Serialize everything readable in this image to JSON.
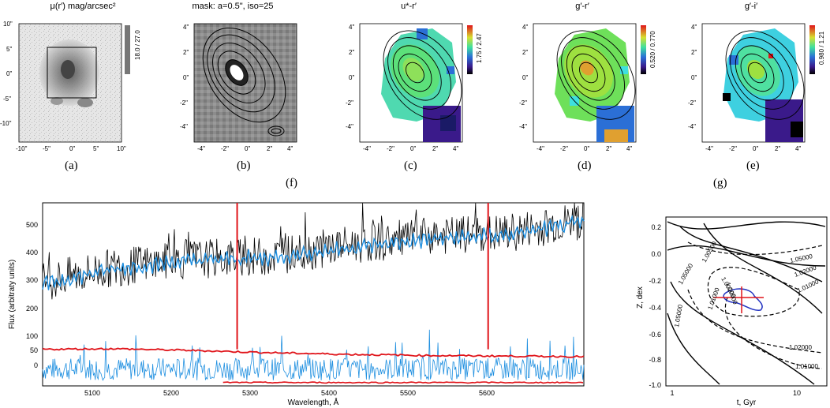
{
  "panels": {
    "a": {
      "title": "μ(r′) mag/arcsec²",
      "caption": "(a)",
      "cbar": "18.0 / 27.0",
      "xticks": [
        "-10\"",
        "-5\"",
        "0\"",
        "5\"",
        "10\""
      ],
      "yticks": [
        "10\"",
        "5\"",
        "0\"",
        "-5\"",
        "-10\""
      ]
    },
    "b": {
      "title": "mask: a=0.5\", iso=25",
      "caption": "(b)",
      "xticks": [
        "-4\"",
        "-2\"",
        "0\"",
        "2\"",
        "4\""
      ],
      "yticks": [
        "4\"",
        "2\"",
        "0\"",
        "-2\"",
        "-4\""
      ]
    },
    "c": {
      "title": "u*-r′",
      "caption": "(c)",
      "cbar": "1.75 / 2.47",
      "xticks": [
        "-4\"",
        "-2\"",
        "0\"",
        "2\"",
        "4\""
      ],
      "yticks": [
        "4\"",
        "2\"",
        "0\"",
        "-2\"",
        "-4\""
      ]
    },
    "d": {
      "title": "g′-r′",
      "caption": "(d)",
      "cbar": "0.520 / 0.770",
      "xticks": [
        "-4\"",
        "-2\"",
        "0\"",
        "2\"",
        "4\""
      ],
      "yticks": [
        "4\"",
        "2\"",
        "0\"",
        "-2\"",
        "-4\""
      ]
    },
    "e": {
      "title": "g′-i′",
      "caption": "(e)",
      "cbar": "0.980 / 1.21",
      "xticks": [
        "-4\"",
        "-2\"",
        "0\"",
        "2\"",
        "4\""
      ],
      "yticks": [
        "4\"",
        "2\"",
        "0\"",
        "-2\"",
        "-4\""
      ]
    }
  },
  "spectrum": {
    "caption": "(f)",
    "xlabel": "Wavelength, Å",
    "ylabel": "Flux (arbitraty units)",
    "xticks": [
      "5100",
      "5200",
      "5300",
      "5400",
      "5500",
      "5600"
    ],
    "yticks": [
      "0",
      "50",
      "100",
      "200",
      "300",
      "400",
      "500"
    ]
  },
  "chi2": {
    "caption": "(g)",
    "xlabel": "t, Gyr",
    "ylabel": "Z, dex",
    "xticks": [
      "1",
      "10"
    ],
    "yticks": [
      "0.2",
      "0.0",
      "-0.2",
      "-0.4",
      "-0.6",
      "-0.8",
      "-1.0"
    ],
    "contour_labels": [
      "1.05000",
      "1.02000",
      "1.01000",
      "1.00500",
      "1.00200",
      "1.00500",
      "1.05000",
      "1.01000",
      "1.02000",
      "1.01000",
      "1.05000"
    ]
  },
  "colors": {
    "model": "#1e8fe0",
    "red": "#e0141a",
    "obs": "#000000"
  },
  "chart_data": [
    {
      "type": "line",
      "xlabel": "Wavelength, Å",
      "ylabel": "Flux (arbitraty units)",
      "xlim": [
        5010,
        5700
      ],
      "series": [
        {
          "x": [
            5010,
            5100,
            5200,
            5300,
            5400,
            5500,
            5600,
            5700
          ],
          "values": [
            310,
            360,
            390,
            400,
            440,
            470,
            480,
            530
          ]
        },
        {
          "x": [
            5010,
            5100,
            5200,
            5300,
            5400,
            5500,
            5600,
            5700
          ],
          "values": [
            300,
            355,
            385,
            395,
            430,
            460,
            475,
            520
          ]
        },
        {
          "x": [
            5010,
            5100,
            5200,
            5300,
            5400,
            5500,
            5600,
            5700
          ],
          "values": [
            70,
            72,
            66,
            58,
            52,
            48,
            46,
            44
          ]
        }
      ]
    }
  ]
}
